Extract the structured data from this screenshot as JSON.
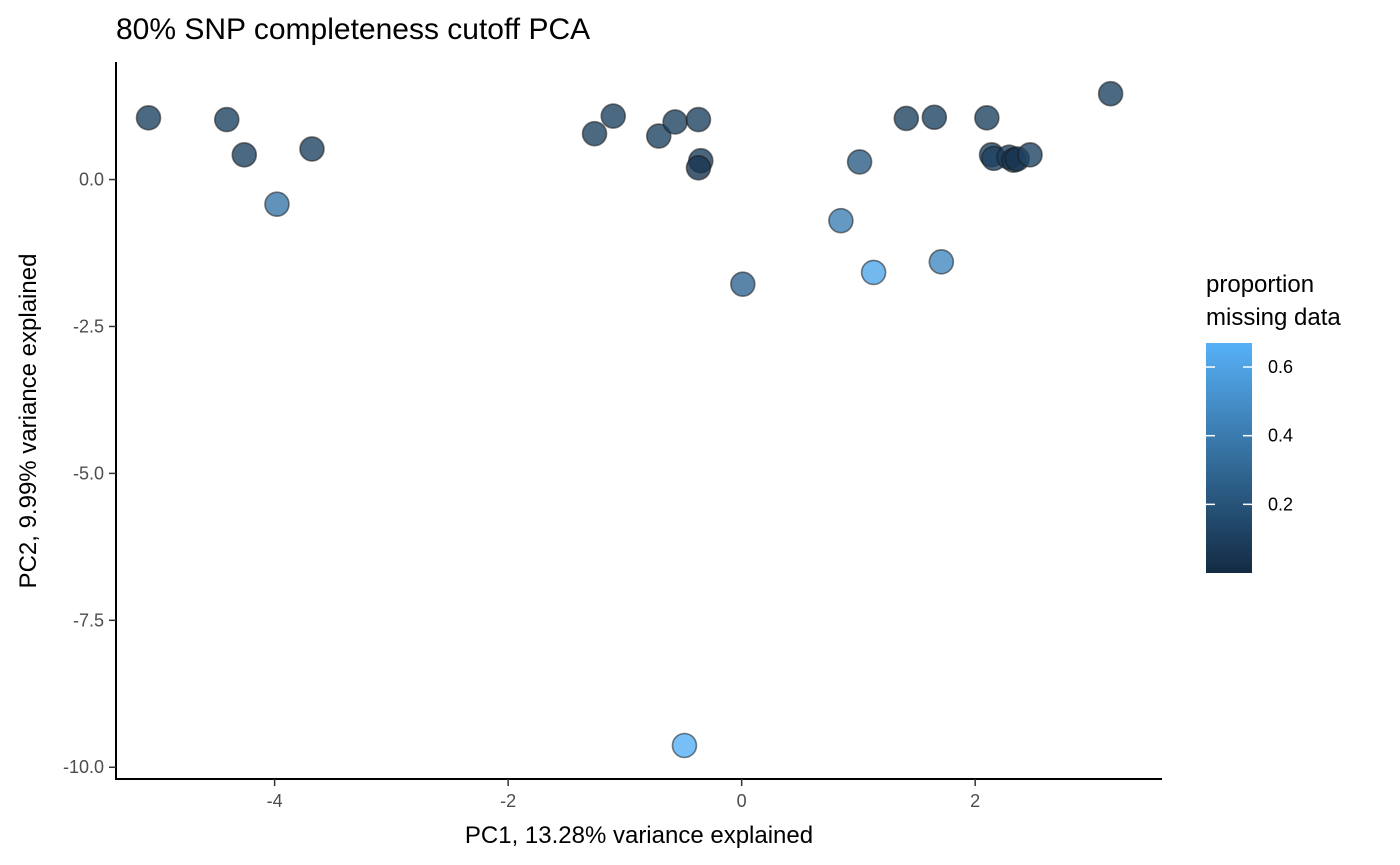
{
  "chart_data": {
    "type": "scatter",
    "title": "80% SNP completeness cutoff PCA",
    "xlabel": "PC1, 13.28% variance explained",
    "ylabel": "PC2, 9.99% variance explained",
    "xlim": [
      -5.35,
      3.6
    ],
    "ylim": [
      -10.2,
      2.0
    ],
    "x_ticks": [
      -4,
      -2,
      0,
      2
    ],
    "x_tick_labels": [
      "-4",
      "-2",
      "0",
      "2"
    ],
    "y_ticks": [
      0,
      -2.5,
      -5,
      -7.5,
      -10
    ],
    "y_tick_labels": [
      "0.0",
      "-2.5",
      "-5.0",
      "-7.5",
      "-10.0"
    ],
    "grid": false,
    "legend": {
      "title_lines": [
        "proportion",
        "missing data"
      ],
      "position": "right",
      "type": "colorbar",
      "range": [
        0.0,
        0.67
      ],
      "breaks": [
        0.2,
        0.4,
        0.6
      ],
      "break_labels": [
        "0.2",
        "0.4",
        "0.6"
      ],
      "color_low": "#132B43",
      "color_high": "#56B1F7"
    },
    "points": [
      {
        "x": -5.08,
        "y": 1.05,
        "c": 0.12
      },
      {
        "x": -4.41,
        "y": 1.02,
        "c": 0.12
      },
      {
        "x": -4.26,
        "y": 0.42,
        "c": 0.12
      },
      {
        "x": -3.68,
        "y": 0.52,
        "c": 0.12
      },
      {
        "x": -3.98,
        "y": -0.42,
        "c": 0.38
      },
      {
        "x": -1.26,
        "y": 0.78,
        "c": 0.12
      },
      {
        "x": -1.1,
        "y": 1.08,
        "c": 0.12
      },
      {
        "x": -0.71,
        "y": 0.74,
        "c": 0.12
      },
      {
        "x": -0.57,
        "y": 0.98,
        "c": 0.12
      },
      {
        "x": -0.37,
        "y": 1.02,
        "c": 0.12
      },
      {
        "x": -0.35,
        "y": 0.32,
        "c": 0.1
      },
      {
        "x": -0.37,
        "y": 0.2,
        "c": 0.05
      },
      {
        "x": 0.01,
        "y": -1.78,
        "c": 0.3
      },
      {
        "x": 0.85,
        "y": -0.7,
        "c": 0.42
      },
      {
        "x": 1.01,
        "y": 0.3,
        "c": 0.25
      },
      {
        "x": 1.13,
        "y": -1.58,
        "c": 0.62
      },
      {
        "x": 1.71,
        "y": -1.4,
        "c": 0.47
      },
      {
        "x": 1.41,
        "y": 1.04,
        "c": 0.12
      },
      {
        "x": 1.65,
        "y": 1.06,
        "c": 0.12
      },
      {
        "x": 2.1,
        "y": 1.05,
        "c": 0.12
      },
      {
        "x": 2.14,
        "y": 0.42,
        "c": 0.12
      },
      {
        "x": 2.16,
        "y": 0.36,
        "c": 0.1
      },
      {
        "x": 2.29,
        "y": 0.38,
        "c": 0.1
      },
      {
        "x": 2.33,
        "y": 0.33,
        "c": 0.05
      },
      {
        "x": 2.36,
        "y": 0.35,
        "c": 0.05
      },
      {
        "x": 2.47,
        "y": 0.42,
        "c": 0.12
      },
      {
        "x": 3.16,
        "y": 1.46,
        "c": 0.12
      },
      {
        "x": -0.49,
        "y": -9.63,
        "c": 0.66
      }
    ]
  }
}
